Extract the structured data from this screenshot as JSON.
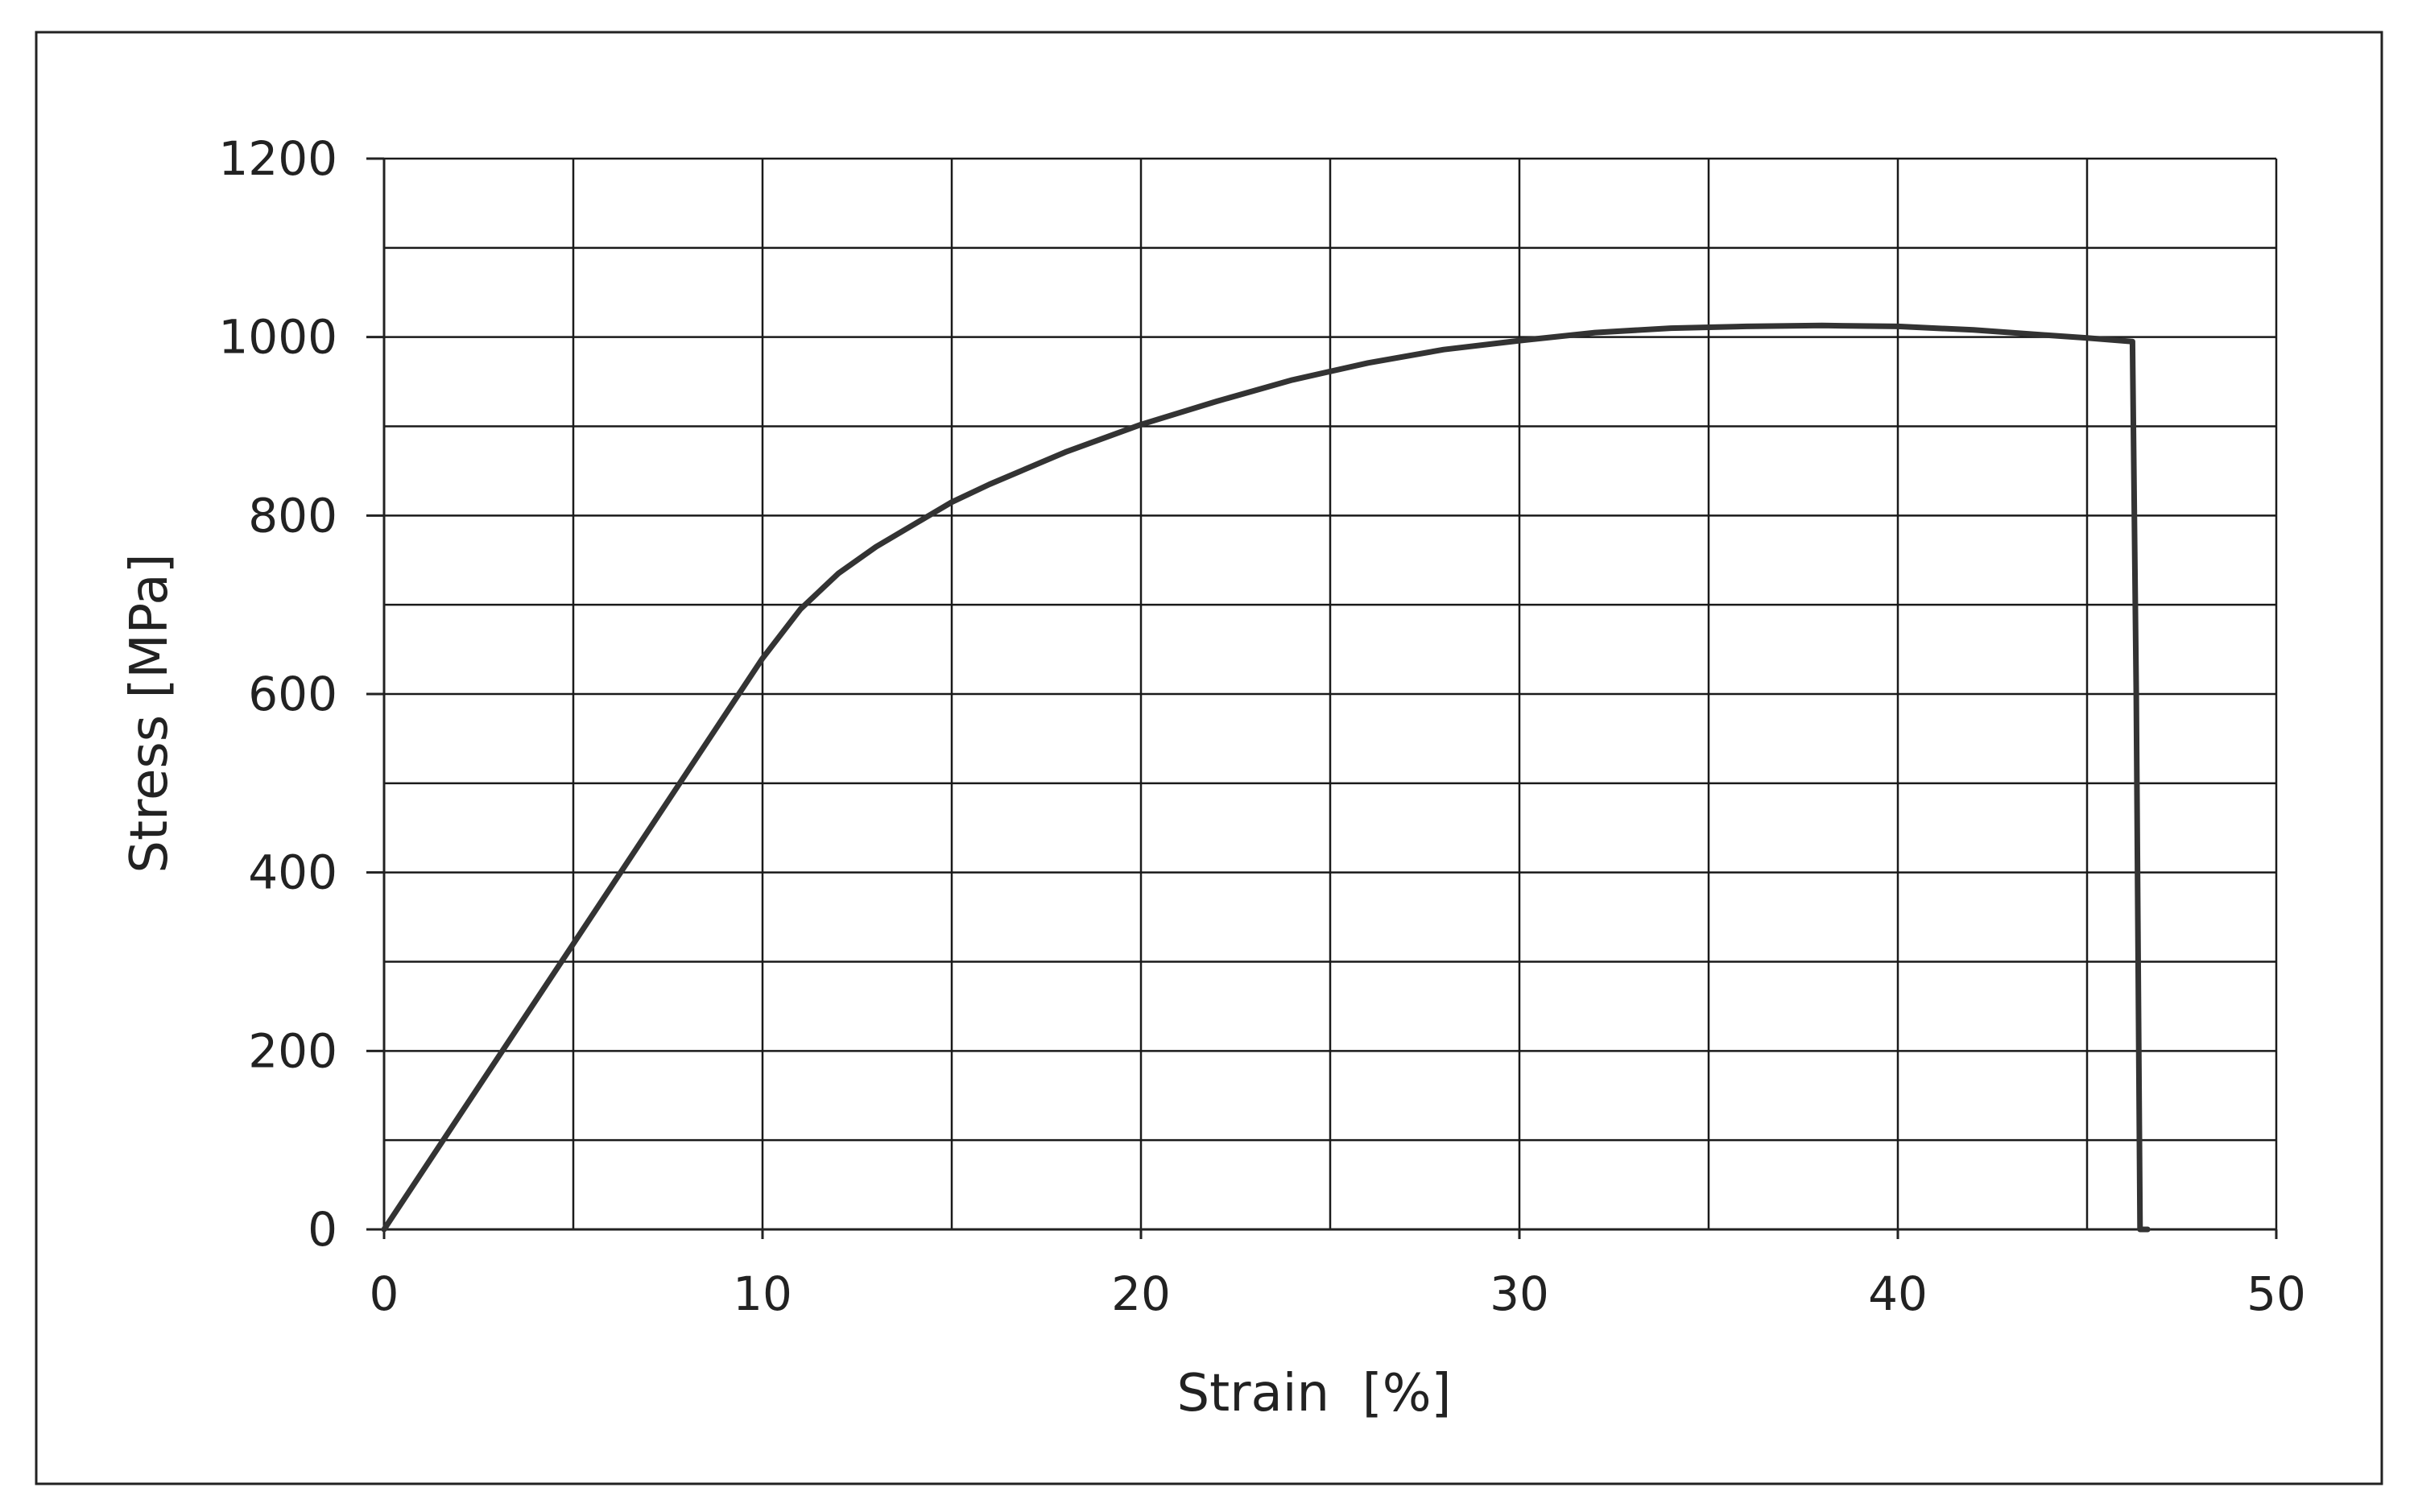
{
  "chart_data": {
    "type": "line",
    "title": "",
    "xlabel": "Strain  [%]",
    "ylabel": "Stress [MPa]",
    "xlim": [
      0,
      50
    ],
    "ylim": [
      0,
      1200
    ],
    "x_major_ticks": [
      0,
      10,
      20,
      30,
      40,
      50
    ],
    "x_minor_gridlines": [
      5,
      15,
      25,
      35,
      45
    ],
    "y_major_ticks": [
      0,
      200,
      400,
      600,
      800,
      1000,
      1200
    ],
    "y_minor_gridlines": [
      100,
      300,
      500,
      700,
      900,
      1100
    ],
    "grid": true,
    "legend": "none",
    "series": [
      {
        "x": [
          0,
          2,
          4,
          6,
          8,
          10,
          11,
          12,
          13,
          14,
          15,
          16,
          18,
          20,
          22,
          24,
          26,
          28,
          30,
          32,
          34,
          36,
          38,
          40,
          42,
          44,
          45,
          46.2,
          46.3,
          46.4,
          46.5,
          46.6
        ],
        "y": [
          0,
          128,
          256,
          384,
          512,
          640,
          695,
          735,
          765,
          790,
          815,
          835,
          871,
          902,
          928,
          952,
          971,
          986,
          996,
          1005,
          1010,
          1012,
          1013,
          1012,
          1008,
          1002,
          999,
          995,
          600,
          0,
          0,
          0
        ]
      }
    ],
    "colors": {
      "line": "#333333",
      "grid": "#1a1a1a",
      "frame": "#222222",
      "text": "#222222"
    }
  }
}
